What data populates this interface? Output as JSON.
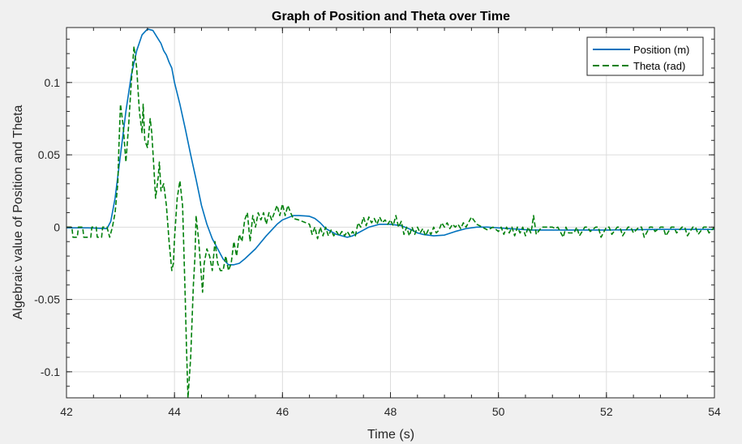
{
  "chart_data": {
    "type": "line",
    "title": "Graph of Position and Theta over Time",
    "xlabel": "Time (s)",
    "ylabel": "Algebraic value of Position and Theta",
    "xlim": [
      42,
      54
    ],
    "ylim": [
      -0.118,
      0.138
    ],
    "xticks": [
      42,
      44,
      46,
      48,
      50,
      52,
      54
    ],
    "xtick_labels": [
      "42",
      "44",
      "46",
      "48",
      "50",
      "52",
      "54"
    ],
    "yticks": [
      -0.1,
      -0.05,
      0,
      0.05,
      0.1
    ],
    "ytick_labels": [
      "-0.1",
      "-0.05",
      "0",
      "0.05",
      "0.1"
    ],
    "grid": true,
    "legend_position": "top-right",
    "series": [
      {
        "name": "Position (m)",
        "color": "#0072bd",
        "style": "solid",
        "x": [
          42.0,
          42.4,
          42.75,
          42.82,
          42.9,
          43.0,
          43.1,
          43.2,
          43.3,
          43.4,
          43.5,
          43.6,
          43.7,
          43.75,
          43.8,
          43.85,
          43.9,
          43.95,
          44.0,
          44.1,
          44.2,
          44.3,
          44.4,
          44.5,
          44.6,
          44.7,
          44.8,
          44.9,
          45.0,
          45.1,
          45.2,
          45.3,
          45.5,
          45.7,
          45.9,
          46.0,
          46.2,
          46.3,
          46.4,
          46.5,
          46.6,
          46.7,
          46.8,
          47.0,
          47.2,
          47.3,
          47.4,
          47.5,
          47.6,
          47.8,
          48.0,
          48.2,
          48.4,
          48.5,
          48.6,
          48.8,
          49.0,
          49.2,
          49.4,
          49.6,
          49.8,
          50.0,
          50.2,
          50.4,
          50.6,
          50.8,
          51.0,
          51.5,
          52.0,
          52.5,
          53.0,
          53.5,
          54.0
        ],
        "y": [
          -0.0005,
          -0.0005,
          -0.001,
          0.004,
          0.02,
          0.05,
          0.08,
          0.105,
          0.122,
          0.133,
          0.137,
          0.136,
          0.13,
          0.127,
          0.122,
          0.119,
          0.114,
          0.11,
          0.1,
          0.085,
          0.068,
          0.05,
          0.033,
          0.015,
          0.002,
          -0.008,
          -0.015,
          -0.022,
          -0.026,
          -0.026,
          -0.025,
          -0.022,
          -0.015,
          -0.006,
          0.002,
          0.005,
          0.008,
          0.008,
          0.0078,
          0.0075,
          0.006,
          0.003,
          -0.001,
          -0.005,
          -0.007,
          -0.006,
          -0.004,
          -0.002,
          0.0,
          0.002,
          0.002,
          0.001,
          -0.002,
          -0.004,
          -0.005,
          -0.006,
          -0.0055,
          -0.003,
          -0.001,
          0.0,
          0.0,
          -0.0005,
          -0.001,
          -0.0015,
          -0.002,
          -0.002,
          -0.002,
          -0.002,
          -0.002,
          -0.0018,
          -0.0015,
          -0.0015,
          -0.0015
        ]
      },
      {
        "name": "Theta (rad)",
        "color": "#00800b",
        "style": "dashed",
        "x": [
          42.0,
          42.1,
          42.12,
          42.2,
          42.22,
          42.3,
          42.32,
          42.45,
          42.47,
          42.55,
          42.57,
          42.65,
          42.67,
          42.75,
          42.8,
          42.85,
          42.9,
          42.95,
          42.97,
          43.0,
          43.05,
          43.1,
          43.15,
          43.2,
          43.25,
          43.3,
          43.35,
          43.4,
          43.42,
          43.45,
          43.5,
          43.55,
          43.58,
          43.62,
          43.65,
          43.7,
          43.72,
          43.75,
          43.8,
          43.85,
          43.9,
          43.95,
          43.98,
          44.0,
          44.05,
          44.1,
          44.15,
          44.2,
          44.22,
          44.25,
          44.3,
          44.35,
          44.38,
          44.4,
          44.45,
          44.5,
          44.52,
          44.55,
          44.6,
          44.65,
          44.7,
          44.75,
          44.8,
          44.85,
          44.9,
          44.95,
          45.0,
          45.05,
          45.1,
          45.15,
          45.2,
          45.25,
          45.3,
          45.35,
          45.4,
          45.45,
          45.5,
          45.55,
          45.6,
          45.65,
          45.7,
          45.75,
          45.8,
          45.85,
          45.9,
          45.95,
          46.0,
          46.05,
          46.1,
          46.15,
          46.2,
          46.3,
          46.5,
          46.55,
          46.6,
          46.65,
          46.7,
          46.75,
          46.8,
          46.85,
          46.9,
          46.95,
          47.0,
          47.05,
          47.1,
          47.15,
          47.2,
          47.25,
          47.3,
          47.35,
          47.4,
          47.45,
          47.5,
          47.55,
          47.6,
          47.65,
          47.7,
          47.75,
          47.8,
          47.85,
          47.9,
          47.95,
          48.0,
          48.05,
          48.1,
          48.15,
          48.2,
          48.25,
          48.3,
          48.35,
          48.4,
          48.45,
          48.5,
          48.55,
          48.6,
          48.65,
          48.7,
          48.75,
          48.8,
          48.85,
          48.9,
          48.95,
          49.0,
          49.05,
          49.1,
          49.15,
          49.2,
          49.25,
          49.3,
          49.35,
          49.4,
          49.5,
          49.6,
          49.7,
          49.8,
          49.9,
          50.0,
          50.05,
          50.1,
          50.15,
          50.2,
          50.25,
          50.3,
          50.35,
          50.4,
          50.45,
          50.5,
          50.55,
          50.6,
          50.62,
          50.65,
          50.7,
          50.8,
          50.9,
          51.0,
          51.05,
          51.1,
          51.2,
          51.25,
          51.3,
          51.4,
          51.45,
          51.5,
          51.6,
          51.65,
          51.7,
          51.8,
          51.85,
          51.9,
          52.0,
          52.05,
          52.1,
          52.2,
          52.25,
          52.3,
          52.4,
          52.45,
          52.5,
          52.6,
          52.65,
          52.7,
          52.8,
          52.85,
          52.9,
          53.0,
          53.05,
          53.1,
          53.2,
          53.25,
          53.3,
          53.4,
          53.45,
          53.5,
          53.6,
          53.65,
          53.7,
          53.8,
          53.85,
          53.9,
          54.0
        ],
        "y": [
          0.0,
          0.0,
          -0.007,
          -0.007,
          0.0,
          0.0,
          -0.007,
          -0.007,
          0.0,
          0.0,
          -0.007,
          -0.007,
          0.0,
          0.0,
          -0.007,
          0.0,
          0.01,
          0.03,
          0.055,
          0.085,
          0.07,
          0.045,
          0.07,
          0.1,
          0.125,
          0.11,
          0.08,
          0.065,
          0.085,
          0.06,
          0.055,
          0.075,
          0.065,
          0.04,
          0.02,
          0.035,
          0.045,
          0.025,
          0.03,
          0.015,
          -0.01,
          -0.03,
          -0.025,
          -0.008,
          0.02,
          0.032,
          0.015,
          -0.05,
          -0.08,
          -0.118,
          -0.09,
          -0.04,
          -0.02,
          0.008,
          -0.01,
          -0.035,
          -0.045,
          -0.025,
          -0.015,
          -0.02,
          -0.03,
          -0.01,
          -0.025,
          -0.03,
          -0.03,
          -0.02,
          -0.03,
          -0.025,
          -0.01,
          -0.02,
          -0.005,
          -0.01,
          0.005,
          0.01,
          -0.01,
          0.008,
          0.0,
          0.01,
          0.005,
          0.01,
          0.002,
          0.01,
          0.005,
          0.01,
          0.015,
          0.008,
          0.016,
          0.008,
          0.015,
          0.01,
          0.006,
          0.005,
          0.002,
          -0.005,
          0.0,
          -0.008,
          0.0,
          -0.006,
          0.0,
          -0.006,
          -0.002,
          -0.006,
          -0.003,
          -0.006,
          -0.003,
          -0.006,
          -0.003,
          -0.006,
          -0.003,
          -0.006,
          0.003,
          0.0,
          0.007,
          0.001,
          0.007,
          0.003,
          0.006,
          0.002,
          0.007,
          0.003,
          0.005,
          0.002,
          0.005,
          0.001,
          0.008,
          0.0,
          0.004,
          -0.005,
          0.0,
          -0.006,
          0.0,
          -0.005,
          0.0,
          -0.004,
          -0.001,
          -0.006,
          -0.002,
          -0.005,
          0.0,
          -0.004,
          -0.002,
          0.003,
          0.0,
          0.003,
          -0.001,
          0.002,
          0.0,
          0.002,
          -0.001,
          0.003,
          0.0,
          0.007,
          0.002,
          0.0,
          -0.002,
          0.0,
          -0.003,
          0.0,
          -0.005,
          0.0,
          -0.004,
          0.0,
          -0.006,
          0.0,
          -0.004,
          0.0,
          -0.006,
          0.0,
          -0.004,
          0.0,
          0.008,
          -0.005,
          0.0,
          0.0,
          0.0,
          -0.001,
          0.0,
          -0.007,
          0.0,
          -0.004,
          -0.004,
          0.0,
          -0.006,
          0.0,
          0.0,
          -0.003,
          0.0,
          0.0,
          -0.007,
          0.0,
          0.0,
          -0.005,
          0.0,
          0.0,
          -0.006,
          0.0,
          0.0,
          -0.004,
          0.0,
          0.0,
          -0.007,
          0.0,
          0.0,
          -0.003,
          0.0,
          0.0,
          -0.006,
          0.0,
          0.0,
          -0.004,
          0.0,
          0.0,
          -0.006,
          0.0,
          0.0,
          -0.005,
          0.0,
          0.0,
          -0.004,
          0.0
        ]
      }
    ]
  }
}
